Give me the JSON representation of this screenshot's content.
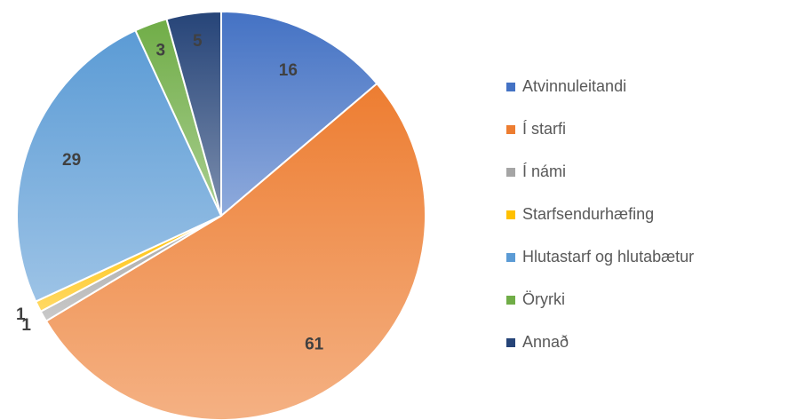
{
  "chart_data": {
    "type": "pie",
    "categories": [
      "Atvinnuleitandi",
      "Í starfi",
      "Í námi",
      "Starfsendurhæfing",
      "Hlutastarf og hlutabætur",
      "Öryrki",
      "Annað"
    ],
    "values": [
      16,
      61,
      1,
      1,
      29,
      3,
      5
    ],
    "colors": [
      "#4472c4",
      "#ed7d31",
      "#a5a5a5",
      "#ffc000",
      "#5b9bd5",
      "#70ad47",
      "#264478"
    ],
    "legend": "right"
  }
}
